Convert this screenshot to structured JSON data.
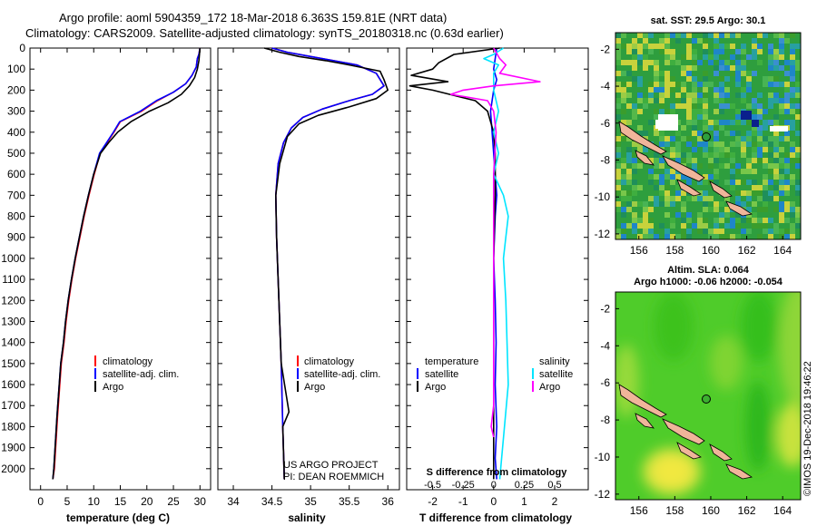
{
  "header": {
    "line1": "Argo profile: aoml 5904359_172 18-Mar-2018 6.363S 159.81E (NRT data)",
    "line2": "Climatology: CARS2009. Satellite-adjusted climatology: synTS_20180318.nc (0.63d earlier)"
  },
  "colors": {
    "climatology": "#ff0000",
    "satellite": "#0000ff",
    "argo": "#000000",
    "sal_sat": "#00e5ff",
    "sal_argo": "#ff00ff",
    "sst_bg": "#2e9e3e",
    "sla_bg": "#4fcc2a"
  },
  "footer": {
    "project": "US ARGO PROJECT",
    "pi": "PI: DEAN ROEMMICH",
    "stamp": "©IMOS 19-Dec-2018 19:46:22"
  },
  "chart_data": [
    {
      "type": "line",
      "name": "temperature-panel",
      "xlabel": "temperature (deg C)",
      "ylabel": "depth",
      "xlim": [
        -2,
        32
      ],
      "ylim": [
        2100,
        0
      ],
      "xticks": [
        0,
        5,
        10,
        15,
        20,
        25,
        30
      ],
      "xtick_labels": [
        "0",
        "5",
        "10",
        "15",
        "20",
        "25",
        "30"
      ],
      "yticks": [
        0,
        100,
        200,
        300,
        400,
        500,
        600,
        700,
        800,
        900,
        1000,
        1100,
        1200,
        1300,
        1400,
        1500,
        1600,
        1700,
        1800,
        1900,
        2000
      ],
      "legend": [
        "climatology",
        "satellite-adj. clim.",
        "Argo"
      ],
      "series": [
        {
          "name": "climatology",
          "color": "#ff0000",
          "x": [
            30.0,
            29.8,
            29.5,
            29.3,
            28.5,
            27.3,
            25.0,
            22.0,
            19.0,
            15.0,
            13.8,
            12.5,
            11.2,
            10.1,
            9.1,
            8.2,
            7.4,
            6.6,
            5.9,
            5.3,
            4.8,
            4.4,
            3.9,
            3.2,
            2.6,
            2.3
          ],
          "y": [
            0,
            30,
            50,
            90,
            130,
            170,
            210,
            250,
            300,
            350,
            400,
            450,
            500,
            600,
            700,
            800,
            900,
            1000,
            1100,
            1200,
            1300,
            1400,
            1500,
            1750,
            2000,
            2050
          ]
        },
        {
          "name": "satellite-adj. clim.",
          "color": "#0000ff",
          "x": [
            30.0,
            29.8,
            29.5,
            29.3,
            28.5,
            27.3,
            25.0,
            21.8,
            18.8,
            14.9,
            13.7,
            12.4,
            11.1,
            10.0,
            9.0,
            8.1,
            7.3,
            6.5,
            5.8,
            5.2,
            4.7,
            4.3,
            3.8,
            3.1,
            2.5,
            2.3
          ],
          "y": [
            0,
            30,
            50,
            90,
            130,
            170,
            210,
            250,
            300,
            350,
            400,
            450,
            500,
            600,
            700,
            800,
            900,
            1000,
            1100,
            1200,
            1300,
            1400,
            1500,
            1750,
            2000,
            2050
          ]
        },
        {
          "name": "Argo",
          "color": "#000000",
          "x": [
            30.0,
            29.9,
            29.8,
            29.5,
            29.0,
            28.0,
            26.5,
            24.0,
            20.5,
            17.0,
            14.5,
            12.8,
            11.3,
            10.0,
            9.0,
            8.1,
            7.3,
            6.5,
            5.8,
            5.2,
            4.7,
            4.3,
            3.8,
            3.1,
            2.5,
            2.3
          ],
          "y": [
            0,
            30,
            60,
            100,
            140,
            180,
            220,
            260,
            300,
            350,
            400,
            450,
            500,
            600,
            700,
            800,
            900,
            1000,
            1100,
            1200,
            1300,
            1400,
            1500,
            1750,
            2000,
            2050
          ]
        }
      ]
    },
    {
      "type": "line",
      "name": "salinity-panel",
      "xlabel": "salinity",
      "ylabel": "",
      "xlim": [
        33.8,
        36.15
      ],
      "ylim": [
        2100,
        0
      ],
      "xticks": [
        34,
        34.5,
        35,
        35.5,
        36
      ],
      "xtick_labels": [
        "34",
        "34.5",
        "35",
        "35.5",
        "36"
      ],
      "legend": [
        "climatology",
        "satellite-adj. clim.",
        "Argo"
      ],
      "series": [
        {
          "name": "climatology",
          "color": "#ff0000",
          "x": [
            34.5,
            34.7,
            35.0,
            35.3,
            35.6,
            35.85,
            35.95,
            35.8,
            35.5,
            35.15,
            34.9,
            34.75,
            34.65,
            34.58,
            34.55,
            34.56,
            34.58,
            34.6,
            34.62,
            34.64,
            34.66
          ],
          "y": [
            0,
            20,
            40,
            60,
            80,
            120,
            180,
            220,
            250,
            290,
            330,
            380,
            450,
            550,
            700,
            900,
            1100,
            1300,
            1500,
            1800,
            2050
          ]
        },
        {
          "name": "satellite-adj. clim.",
          "color": "#0000ff",
          "x": [
            34.5,
            34.7,
            35.0,
            35.3,
            35.6,
            35.85,
            35.95,
            35.8,
            35.5,
            35.15,
            34.9,
            34.75,
            34.65,
            34.58,
            34.55,
            34.56,
            34.58,
            34.6,
            34.62,
            34.64,
            34.66
          ],
          "y": [
            0,
            20,
            40,
            60,
            80,
            120,
            180,
            220,
            250,
            290,
            330,
            380,
            450,
            550,
            700,
            900,
            1100,
            1300,
            1500,
            1800,
            2050
          ]
        },
        {
          "name": "Argo",
          "color": "#000000",
          "x": [
            34.4,
            34.6,
            34.85,
            35.2,
            35.5,
            35.9,
            35.95,
            36.0,
            35.85,
            35.5,
            35.1,
            34.85,
            34.7,
            34.6,
            34.55,
            34.56,
            34.58,
            34.6,
            34.62,
            34.72,
            34.64,
            34.66
          ],
          "y": [
            0,
            20,
            40,
            60,
            80,
            110,
            150,
            200,
            240,
            280,
            320,
            360,
            420,
            550,
            700,
            900,
            1100,
            1300,
            1500,
            1730,
            1800,
            2050
          ]
        }
      ]
    },
    {
      "type": "line",
      "name": "difference-panel",
      "xlabel": "T difference from climatology",
      "xlabel_top": "S difference from climatology",
      "xlim": [
        -2.85,
        3.1
      ],
      "ylim": [
        2100,
        0
      ],
      "xticks": [
        -2,
        -1,
        0,
        1,
        2
      ],
      "xtick_labels": [
        "-2",
        "-1",
        "0",
        "1",
        "2"
      ],
      "s_ticks": [
        -0.5,
        -0.25,
        0,
        0.25,
        0.5
      ],
      "s_tick_labels": [
        "-0.5",
        "-0.25",
        "0",
        "0.25",
        "0.5"
      ],
      "s_scale": 4,
      "legend_left_title": "temperature",
      "legend_right_title": "salinity",
      "legend_left": [
        "satellite",
        "Argo"
      ],
      "legend_right": [
        "satellite",
        "Argo"
      ],
      "series": [
        {
          "name": "T satellite",
          "color": "#0000ff",
          "x": [
            0.1,
            0.05,
            0.0,
            0.1,
            0.0,
            -0.1,
            -0.05,
            0.0,
            0.05,
            0.1,
            0.05,
            0.0,
            0.05,
            0.08,
            0.05,
            0.1,
            0.05,
            0.1
          ],
          "y": [
            0,
            50,
            100,
            150,
            200,
            300,
            400,
            500,
            600,
            700,
            800,
            1000,
            1200,
            1400,
            1600,
            1800,
            1950,
            2050
          ]
        },
        {
          "name": "T Argo",
          "color": "#000000",
          "x": [
            0.2,
            -1.3,
            -1.8,
            -2.0,
            -2.7,
            -1.5,
            -2.75,
            -2.0,
            -0.6,
            -0.2,
            -0.1,
            0.0,
            0.05,
            0.05,
            0.0,
            0.0,
            0.0,
            0.0
          ],
          "y": [
            0,
            30,
            70,
            100,
            130,
            160,
            180,
            200,
            250,
            300,
            350,
            400,
            500,
            700,
            1000,
            1500,
            1800,
            2050
          ]
        },
        {
          "name": "S satellite",
          "color": "#00e5ff",
          "x": [
            0.08,
            0.0,
            -0.08,
            0.04,
            0.0,
            0.0,
            0.04,
            0.0,
            0.04,
            0.0,
            0.08,
            0.12,
            0.1,
            0.08,
            0.1,
            0.12,
            0.05
          ],
          "y": [
            0,
            30,
            50,
            80,
            120,
            200,
            300,
            400,
            500,
            600,
            700,
            800,
            900,
            1000,
            1200,
            1600,
            2050
          ]
        },
        {
          "name": "S Argo",
          "color": "#ff00ff",
          "x": [
            0.0,
            0.05,
            0.1,
            0.05,
            0.38,
            0.0,
            -0.25,
            -0.35,
            -0.05,
            0.0,
            0.02,
            0.0,
            0.0,
            0.0,
            0.0,
            -0.02,
            0.0
          ],
          "y": [
            0,
            50,
            80,
            120,
            160,
            180,
            200,
            220,
            250,
            300,
            400,
            600,
            1000,
            1400,
            1700,
            1800,
            1850
          ]
        }
      ]
    },
    {
      "type": "heatmap",
      "name": "sst-map",
      "title": "sat. SST: 29.5 Argo: 30.1",
      "xticks": [
        156,
        158,
        160,
        162,
        164
      ],
      "yticks": [
        -2,
        -4,
        -6,
        -8,
        -10,
        -12
      ],
      "xlim": [
        154.7,
        165
      ],
      "ylim": [
        -12.3,
        -1.1
      ],
      "float_position": [
        159.81,
        -6.363
      ]
    },
    {
      "type": "heatmap",
      "name": "sla-map",
      "title": "Altim. SLA: 0.064",
      "subtitle": "Argo h1000: -0.06 h2000: -0.054",
      "xticks": [
        156,
        158,
        160,
        162,
        164
      ],
      "yticks": [
        -2,
        -4,
        -6,
        -8,
        -10,
        -12
      ],
      "xlim": [
        154.7,
        165
      ],
      "ylim": [
        -12.3,
        -1.1
      ],
      "float_position": [
        159.81,
        -6.363
      ]
    }
  ]
}
